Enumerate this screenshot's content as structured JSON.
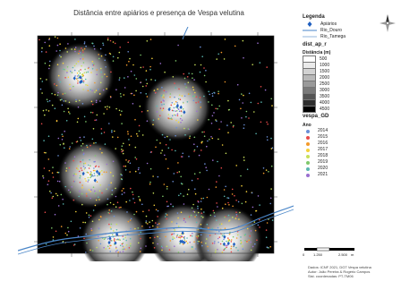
{
  "title": "Distância entre apiários e presença de Vespa velutina",
  "legend": {
    "heading": "Legenda",
    "apiarios_label": "Apiários",
    "rio_label": "Rio_Douro",
    "rio2_label": "Rio_Tamega",
    "dist_heading": "dist_ap_r",
    "dist_sub": "Distância (m)",
    "dist_classes": [
      {
        "label": "500",
        "color": "#ffffff"
      },
      {
        "label": "1000",
        "color": "#eaeaea"
      },
      {
        "label": "1500",
        "color": "#d2d2d2"
      },
      {
        "label": "2000",
        "color": "#b8b8b8"
      },
      {
        "label": "2500",
        "color": "#9a9a9a"
      },
      {
        "label": "3000",
        "color": "#7a7a7a"
      },
      {
        "label": "3500",
        "color": "#555555"
      },
      {
        "label": "4000",
        "color": "#2e2e2e"
      },
      {
        "label": "4500",
        "color": "#000000"
      }
    ],
    "vespa_heading": "vespa_GD",
    "vespa_sub": "Ano",
    "years": [
      {
        "label": "2014",
        "color": "#6a8fd6"
      },
      {
        "label": "2015",
        "color": "#e84a4a"
      },
      {
        "label": "2016",
        "color": "#f39a2a"
      },
      {
        "label": "2017",
        "color": "#f5d13c"
      },
      {
        "label": "2018",
        "color": "#c8e05a"
      },
      {
        "label": "2019",
        "color": "#7fc86b"
      },
      {
        "label": "2020",
        "color": "#5ab6b0"
      },
      {
        "label": "2021",
        "color": "#9a6fd0"
      }
    ]
  },
  "scale": {
    "zero": "0",
    "mid": "1.250",
    "max": "2.500",
    "unit": "m"
  },
  "credits": [
    "Dados: ICNF 2021, DGT Vespa velutina",
    "Autor: João Pereira & Rogério Campos",
    "Sist. coordenadas: PT-TM06"
  ],
  "colors": {
    "river": "#4a86c8",
    "apiary": "#1f5fbf",
    "background": "#000000"
  }
}
